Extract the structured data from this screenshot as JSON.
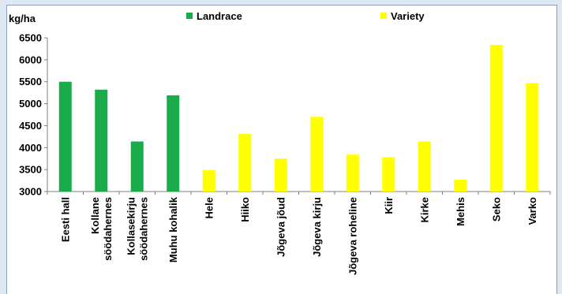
{
  "chart_data": {
    "type": "bar",
    "ylabel": "kg/ha",
    "ylim": [
      3000,
      6500
    ],
    "yticks": [
      "3000",
      "3500",
      "4000",
      "4500",
      "5000",
      "5500",
      "6000",
      "6500"
    ],
    "grid": false,
    "legend_position": "top",
    "groups": [
      {
        "name": "Landrace",
        "color": "#1aab4b"
      },
      {
        "name": "Variety",
        "color": "#ffff00"
      }
    ],
    "categories": [
      [
        "Eesti hall"
      ],
      [
        "Kollane",
        "söödahernes"
      ],
      [
        "Kollasekirju",
        "söödahernes"
      ],
      [
        "Muhu kohalik"
      ],
      [
        "Hele"
      ],
      [
        "Hiiko"
      ],
      [
        "Jõgeva jõud"
      ],
      [
        "Jõgeva kirju"
      ],
      [
        "Jõgeva roheline"
      ],
      [
        "Kiir"
      ],
      [
        "Kirke"
      ],
      [
        "Mehis"
      ],
      [
        "Seko"
      ],
      [
        "Varko"
      ]
    ],
    "category_group": [
      0,
      0,
      0,
      0,
      1,
      1,
      1,
      1,
      1,
      1,
      1,
      1,
      1,
      1
    ],
    "values": [
      5500,
      5320,
      4140,
      5190,
      3490,
      4310,
      3750,
      4700,
      3840,
      3780,
      4140,
      3270,
      6340,
      5470
    ]
  }
}
